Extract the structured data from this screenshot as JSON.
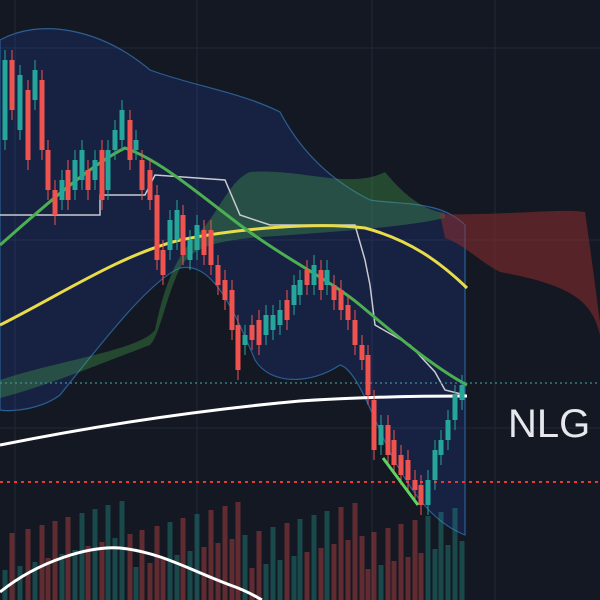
{
  "chart_data": {
    "type": "candlestick",
    "annotation": "NLG"
  }
}
